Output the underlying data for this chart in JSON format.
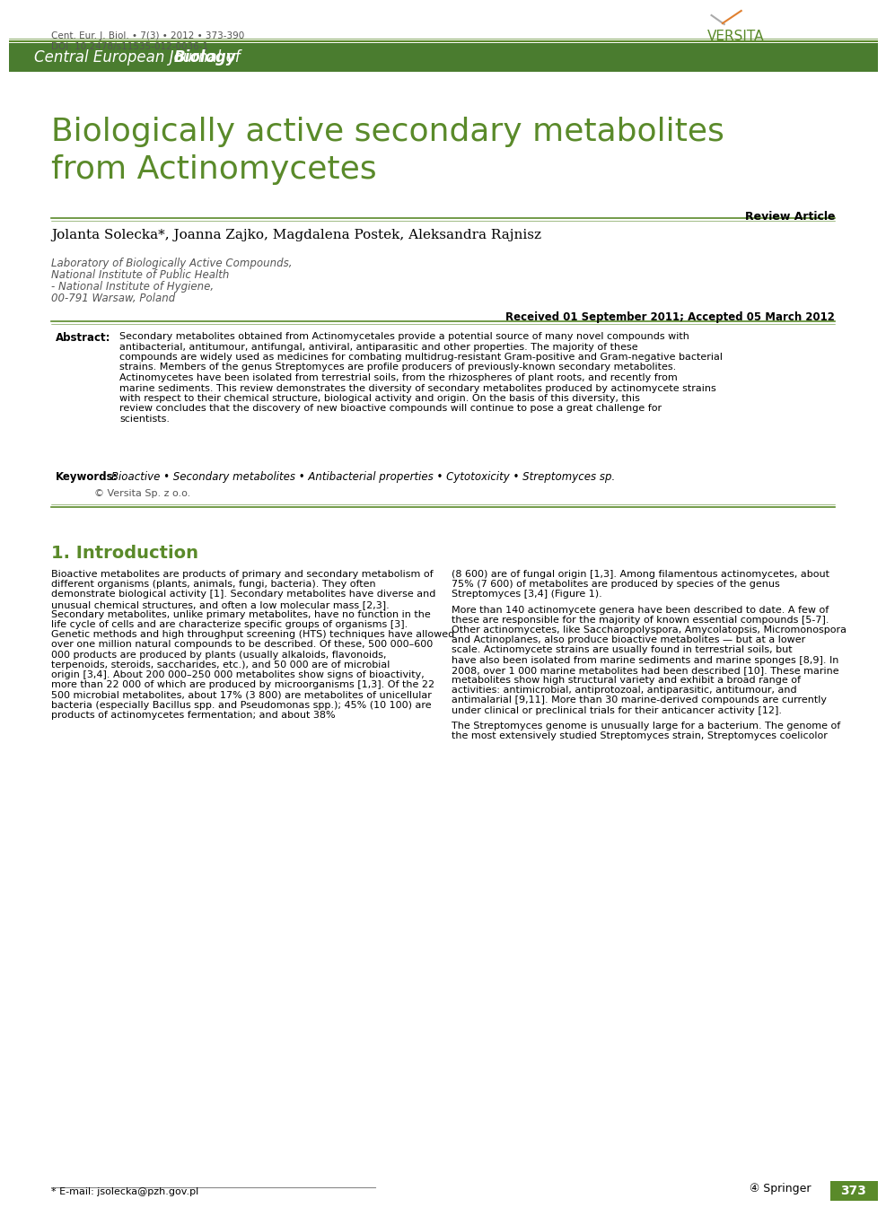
{
  "bg_color": "#ffffff",
  "header_meta": "Cent. Eur. J. Biol. • 7(3) • 2012 • 373-390\nDOI: 10.2478/s11535-012-0036-1",
  "journal_banner_color": "#4a7c2f",
  "journal_banner_text_normal": "Central European Journal of ",
  "journal_banner_text_bold": "Biology",
  "journal_banner_text_color": "#ffffff",
  "article_title": "Biologically active secondary metabolites\nfrom Actinomycetes",
  "article_title_color": "#5a8a2a",
  "review_article_label": "Review Article",
  "authors": "Jolanta Solecka*, Joanna Zajko, Magdalena Postek, Aleksandra Rajnisz",
  "affiliation_line1": "Laboratory of Biologically Active Compounds,",
  "affiliation_line2": "National Institute of Public Health",
  "affiliation_line3": "- National Institute of Hygiene,",
  "affiliation_line4": "00-791 Warsaw, Poland",
  "received_text": "Received 01 September 2011; Accepted 05 March 2012",
  "abstract_label": "Abstract:",
  "abstract_text": "Secondary metabolites obtained from Actinomycetales provide a potential source of many novel compounds with antibacterial, antitumour, antifungal, antiviral, antiparasitic and other properties. The majority of these compounds are widely used as medicines for combating multidrug-resistant Gram-positive and Gram-negative bacterial strains. Members of the genus Streptomyces are profile producers of previously-known secondary metabolites. Actinomycetes have been isolated from terrestrial soils, from the rhizospheres of plant roots, and recently from marine sediments. This review demonstrates the diversity of secondary metabolites produced by actinomycete strains with respect to their chemical structure, biological activity and origin. On the basis of this diversity, this review concludes that the discovery of new bioactive compounds will continue to pose a great challenge for scientists.",
  "keywords_label": "Keywords:",
  "keywords_text": "Bioactive • Secondary metabolites • Antibacterial properties • Cytotoxicity • Streptomyces sp.",
  "copyright_text": "© Versita Sp. z o.o.",
  "section1_title": "1. Introduction",
  "section1_title_color": "#5a8a2a",
  "intro_col1": "Bioactive metabolites are products of primary and secondary metabolism of different organisms (plants, animals, fungi, bacteria). They often demonstrate biological activity [1]. Secondary metabolites have diverse and unusual chemical structures, and often a low molecular mass [2,3]. Secondary metabolites, unlike primary metabolites, have no function in the life cycle of cells and are characterize specific groups of organisms [3]. Genetic methods and high throughput screening (HTS) techniques have allowed over one million natural compounds to be described. Of these, 500 000–600 000 products are produced by plants (usually alkaloids, flavonoids, terpenoids, steroids, saccharides, etc.), and 50 000 are of microbial origin [3,4]. About 200 000–250 000 metabolites show signs of bioactivity, more than 22 000 of which are produced by microorganisms [1,3]. Of the 22 500 microbial metabolites, about 17% (3 800) are metabolites of unicellular bacteria (especially Bacillus spp. and Pseudomonas spp.); 45% (10 100) are products of actinomycetes fermentation; and about 38%",
  "intro_col2": "(8 600) are of fungal origin [1,3]. Among filamentous actinomycetes, about 75% (7 600) of metabolites are produced by species of the genus Streptomyces [3,4] (Figure 1).\n\nMore than 140 actinomycete genera have been described to date. A few of these are responsible for the majority of known essential compounds [5-7]. Other actinomycetes, like Saccharopolyspora, Amycolatopsis, Micromonospora and Actinoplanes, also produce bioactive metabolites — but at a lower scale. Actinomycete strains are usually found in terrestrial soils, but have also been isolated from marine sediments and marine sponges [8,9]. In 2008, over 1 000 marine metabolites had been described [10]. These marine metabolites show high structural variety and exhibit a broad range of activities: antimicrobial, antiprotozoal, antiparasitic, antitumour, and antimalarial [9,11]. More than 30 marine-derived compounds are currently under clinical or preclinical trials for their anticancer activity [12].\n\nThe Streptomyces genome is unusually large for a bacterium. The genome of the most extensively studied Streptomyces strain, Streptomyces coelicolor",
  "footer_email": "* E-mail: jsolecka@pzh.gov.pl",
  "footer_page": "373",
  "footer_page_bg": "#5a8a2a",
  "springer_logo_color": "#000000",
  "line_color": "#5a8a2a",
  "divider_color": "#888888"
}
